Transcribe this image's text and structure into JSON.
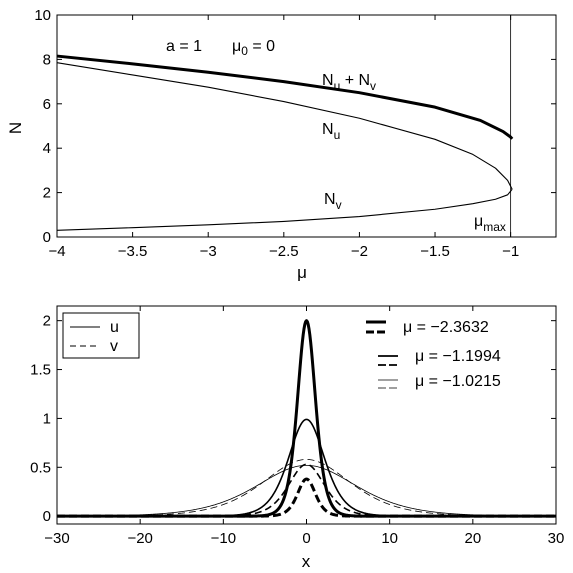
{
  "chart_data": [
    {
      "type": "line",
      "title": "",
      "xlabel": "μ",
      "ylabel": "N",
      "xlim": [
        -4,
        -0.7
      ],
      "ylim": [
        0,
        10
      ],
      "xticks": [
        -4,
        -3.5,
        -3,
        -2.5,
        -2,
        -1.5,
        -1
      ],
      "xtick_labels": [
        "−4",
        "−3.5",
        "−3",
        "−2.5",
        "−2",
        "−1.5",
        "−1"
      ],
      "yticks": [
        0,
        2,
        4,
        6,
        8,
        10
      ],
      "ytick_labels": [
        "0",
        "2",
        "4",
        "6",
        "8",
        "10"
      ],
      "grid": false,
      "parameter_text": {
        "a": "a = 1",
        "mu0_main": "μ",
        "mu0_sub": "0",
        "mu0_rest": " = 0"
      },
      "vertical_line_x": -1,
      "series": [
        {
          "name": "N_u + N_v",
          "label_main": "N",
          "label_sub1": "u",
          "label_mid": " + N",
          "label_sub2": "v",
          "line_width": "thick",
          "x": [
            -4,
            -3.5,
            -3,
            -2.5,
            -2,
            -1.5,
            -1.2,
            -1.05,
            -1.0,
            -0.99
          ],
          "y": [
            8.15,
            7.8,
            7.42,
            7.0,
            6.5,
            5.85,
            5.25,
            4.75,
            4.5,
            4.42
          ]
        },
        {
          "name": "N_u",
          "label_main": "N",
          "label_sub": "u",
          "line_width": "thin",
          "x": [
            -4,
            -3.5,
            -3,
            -2.5,
            -2,
            -1.5,
            -1.25,
            -1.1,
            -1.02,
            -0.99
          ],
          "y": [
            7.85,
            7.3,
            6.75,
            6.1,
            5.35,
            4.4,
            3.72,
            3.1,
            2.55,
            2.15
          ]
        },
        {
          "name": "N_v",
          "label_main": "N",
          "label_sub": "v",
          "line_width": "thin",
          "x": [
            -4,
            -3.5,
            -3,
            -2.5,
            -2,
            -1.5,
            -1.25,
            -1.1,
            -1.02,
            -0.99
          ],
          "y": [
            0.3,
            0.42,
            0.55,
            0.7,
            0.92,
            1.25,
            1.5,
            1.7,
            1.9,
            2.15
          ]
        }
      ],
      "annotations": [
        {
          "text_main": "μ",
          "text_sub": "max",
          "x": -1.08,
          "y": 0.3
        }
      ]
    },
    {
      "type": "line",
      "title": "",
      "xlabel": "x",
      "ylabel": "",
      "xlim": [
        -30,
        30
      ],
      "ylim": [
        -0.08,
        2.15
      ],
      "xticks": [
        -30,
        -20,
        -10,
        0,
        10,
        20,
        30
      ],
      "xtick_labels": [
        "−30",
        "−20",
        "−10",
        "0",
        "10",
        "20",
        "30"
      ],
      "yticks": [
        0,
        0.5,
        1,
        1.5,
        2
      ],
      "ytick_labels": [
        "0",
        "0.5",
        "1",
        "1.5",
        "2"
      ],
      "grid": false,
      "legend_style": {
        "placement": "top-left",
        "entries": [
          {
            "label": "u",
            "dash": "solid"
          },
          {
            "label": "v",
            "dash": "dashed"
          }
        ]
      },
      "legend_mu": {
        "placement": "top-right",
        "entries": [
          {
            "label": "μ = −2.3632",
            "mu": -2.3632,
            "weight": "thick"
          },
          {
            "label": "μ = −1.1994",
            "mu": -1.1994,
            "weight": "medium"
          },
          {
            "label": "μ = −1.0215",
            "mu": -1.0215,
            "weight": "thin"
          }
        ]
      },
      "series": [
        {
          "mu": -2.3632,
          "component": "u",
          "amplitude": 2.0,
          "width": 1.45,
          "line": "thick-solid"
        },
        {
          "mu": -2.3632,
          "component": "v",
          "amplitude": 0.38,
          "width": 1.45,
          "line": "thick-dashed"
        },
        {
          "mu": -1.1994,
          "component": "u",
          "amplitude": 0.99,
          "width": 2.9,
          "line": "medium-solid"
        },
        {
          "mu": -1.1994,
          "component": "v",
          "amplitude": 0.53,
          "width": 2.9,
          "line": "medium-dashed"
        },
        {
          "mu": -1.0215,
          "component": "u",
          "amplitude": 0.52,
          "width": 8.0,
          "line": "thin-solid"
        },
        {
          "mu": -1.0215,
          "component": "v",
          "amplitude": 0.58,
          "width": 7.0,
          "line": "thin-dashed"
        }
      ]
    }
  ]
}
